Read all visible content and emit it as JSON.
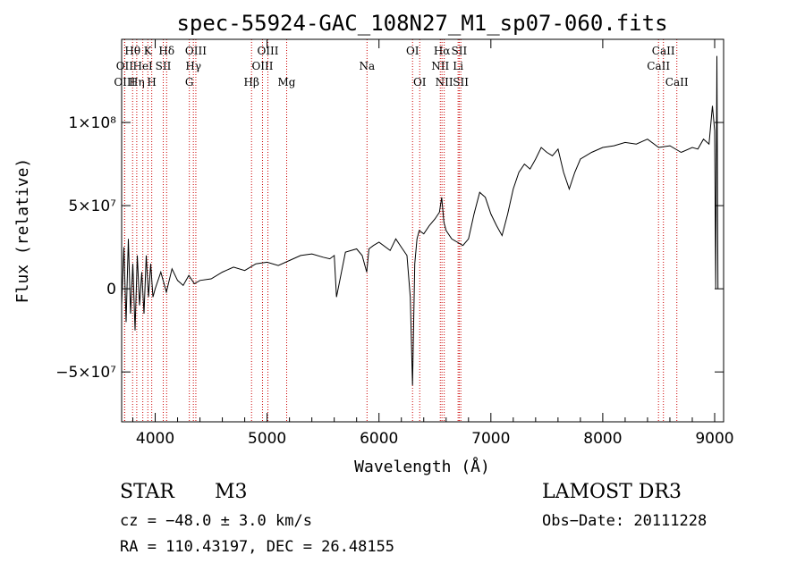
{
  "chart_data": {
    "type": "line",
    "title": "spec-55924-GAC_108N27_M1_sp07-060.fits",
    "xlabel": "Wavelength (Å)",
    "ylabel": "Flux (relative)",
    "xlim": [
      3700,
      9080
    ],
    "ylim": [
      -80000000,
      150000000
    ],
    "x_ticks": [
      4000,
      5000,
      6000,
      7000,
      8000,
      9000
    ],
    "x_tick_labels": [
      "4000",
      "5000",
      "6000",
      "7000",
      "8000",
      "9000"
    ],
    "y_ticks": [
      -50000000,
      0,
      50000000,
      100000000
    ],
    "y_tick_labels": [
      "−5×10⁷",
      "0",
      "5×10⁷",
      "1×10⁸"
    ],
    "series": [
      {
        "name": "flux",
        "x": [
          3700,
          3720,
          3740,
          3760,
          3780,
          3800,
          3820,
          3840,
          3860,
          3880,
          3900,
          3920,
          3940,
          3960,
          3980,
          4000,
          4050,
          4100,
          4150,
          4200,
          4250,
          4300,
          4350,
          4400,
          4500,
          4600,
          4700,
          4800,
          4900,
          5000,
          5100,
          5200,
          5300,
          5400,
          5500,
          5560,
          5600,
          5620,
          5700,
          5800,
          5850,
          5890,
          5910,
          5950,
          6000,
          6100,
          6150,
          6200,
          6250,
          6280,
          6300,
          6320,
          6340,
          6360,
          6400,
          6450,
          6500,
          6540,
          6560,
          6580,
          6600,
          6650,
          6700,
          6750,
          6800,
          6850,
          6900,
          6950,
          7000,
          7050,
          7100,
          7150,
          7200,
          7250,
          7300,
          7350,
          7400,
          7450,
          7500,
          7550,
          7600,
          7650,
          7700,
          7750,
          7800,
          7900,
          8000,
          8100,
          8200,
          8300,
          8400,
          8500,
          8600,
          8700,
          8800,
          8850,
          8900,
          8950,
          8980,
          9000,
          9010,
          9020,
          9030
        ],
        "y": [
          -10000000,
          25000000,
          -20000000,
          30000000,
          -15000000,
          15000000,
          -25000000,
          20000000,
          -10000000,
          10000000,
          -15000000,
          20000000,
          -5000000,
          15000000,
          -5000000,
          0,
          10000000,
          -2000000,
          12000000,
          5000000,
          2000000,
          8000000,
          3000000,
          5000000,
          6000000,
          10000000,
          13000000,
          11000000,
          15000000,
          16000000,
          14000000,
          17000000,
          20000000,
          21000000,
          19000000,
          18000000,
          20000000,
          -5000000,
          22000000,
          24000000,
          20000000,
          10000000,
          24000000,
          26000000,
          28000000,
          23000000,
          30000000,
          25000000,
          20000000,
          -5000000,
          -58000000,
          15000000,
          30000000,
          35000000,
          33000000,
          38000000,
          42000000,
          46000000,
          55000000,
          40000000,
          35000000,
          30000000,
          28000000,
          26000000,
          30000000,
          45000000,
          58000000,
          55000000,
          45000000,
          38000000,
          32000000,
          45000000,
          60000000,
          70000000,
          75000000,
          72000000,
          78000000,
          85000000,
          82000000,
          80000000,
          84000000,
          70000000,
          60000000,
          70000000,
          78000000,
          82000000,
          85000000,
          86000000,
          88000000,
          87000000,
          90000000,
          85000000,
          86000000,
          82000000,
          85000000,
          84000000,
          90000000,
          87000000,
          110000000,
          95000000,
          0,
          140000000,
          0
        ]
      }
    ],
    "lines": [
      {
        "name": "Hθ",
        "x": 3798,
        "row": 1
      },
      {
        "name": "OII",
        "x": 3727,
        "row": 2
      },
      {
        "name": "OIII",
        "x": 3727,
        "row": 3
      },
      {
        "name": "K",
        "x": 3934,
        "row": 1
      },
      {
        "name": "HeI",
        "x": 3889,
        "row": 2
      },
      {
        "name": "Hη",
        "x": 3835,
        "row": 3
      },
      {
        "name": "Hδ",
        "x": 4102,
        "row": 1
      },
      {
        "name": "SII",
        "x": 4072,
        "row": 2
      },
      {
        "name": "H",
        "x": 3969,
        "row": 3
      },
      {
        "name": "OIII",
        "x": 4363,
        "row": 1
      },
      {
        "name": "Hγ",
        "x": 4341,
        "row": 2
      },
      {
        "name": "G",
        "x": 4305,
        "row": 3
      },
      {
        "name": "OIII",
        "x": 5007,
        "row": 1
      },
      {
        "name": "OIII",
        "x": 4959,
        "row": 2
      },
      {
        "name": "Hβ",
        "x": 4861,
        "row": 3
      },
      {
        "name": "Mg",
        "x": 5175,
        "row": 3
      },
      {
        "name": "Na",
        "x": 5893,
        "row": 2
      },
      {
        "name": "OI",
        "x": 6300,
        "row": 1
      },
      {
        "name": "OI",
        "x": 6364,
        "row": 3
      },
      {
        "name": "Hα",
        "x": 6563,
        "row": 1
      },
      {
        "name": "NII",
        "x": 6548,
        "row": 2
      },
      {
        "name": "NII",
        "x": 6583,
        "row": 3
      },
      {
        "name": "SII",
        "x": 6717,
        "row": 1
      },
      {
        "name": "Li",
        "x": 6707,
        "row": 2
      },
      {
        "name": "SII",
        "x": 6731,
        "row": 3
      },
      {
        "name": "CaII",
        "x": 8542,
        "row": 1
      },
      {
        "name": "CaII",
        "x": 8498,
        "row": 2
      },
      {
        "name": "CaII",
        "x": 8662,
        "row": 3
      }
    ],
    "line_color": "#cc0000"
  },
  "info": {
    "class_label": "STAR",
    "subclass": "M3",
    "cz": "cz = −48.0 ± 3.0 km/s",
    "coords": "RA = 110.43197, DEC =  26.48155",
    "survey": "LAMOST DR3",
    "obs_date": "Obs−Date: 20111228"
  }
}
